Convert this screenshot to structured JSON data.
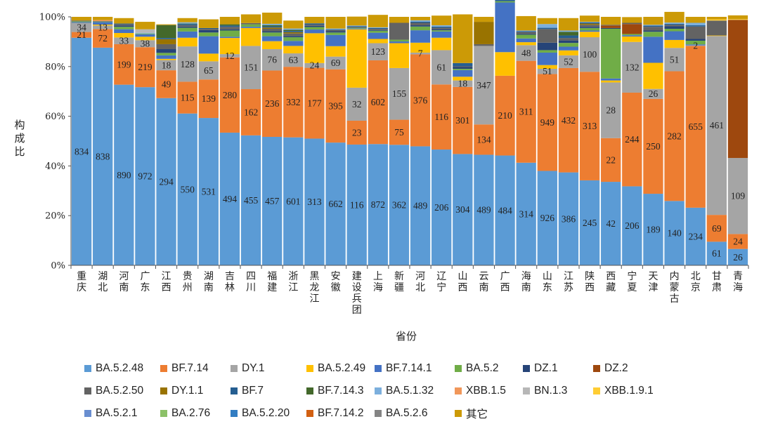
{
  "chart_data": {
    "type": "bar",
    "stacked": true,
    "percent": true,
    "xlabel": "省份",
    "ylabel": "构成比",
    "ylim": [
      0,
      100
    ],
    "yticks": [
      "0%",
      "20%",
      "40%",
      "60%",
      "80%",
      "100%"
    ],
    "grid": false,
    "legend_position": "bottom",
    "categories": [
      "重庆",
      "湖北",
      "河南",
      "广东",
      "江西",
      "贵州",
      "湖南",
      "吉林",
      "四川",
      "福建",
      "浙江",
      "黑龙江",
      "安徽",
      "建设兵团",
      "上海",
      "新疆",
      "河北",
      "辽宁",
      "山西",
      "云南",
      "广西",
      "海南",
      "山东",
      "江苏",
      "陕西",
      "西藏",
      "宁夏",
      "天津",
      "内蒙古",
      "北京",
      "甘肃",
      "青海"
    ],
    "series": [
      {
        "name": "BA.5.2.48",
        "color": "#5b9bd5",
        "values": [
          91.6,
          87.6,
          72.7,
          71.7,
          67.3,
          61.1,
          59.3,
          53.4,
          52.3,
          51.7,
          51.5,
          51.0,
          49.4,
          48.6,
          48.8,
          48.5,
          47.9,
          46.6,
          44.8,
          44.5,
          44.2,
          41.3,
          38.0,
          37.4,
          34.2,
          33.6,
          31.8,
          28.8,
          25.9,
          23.2,
          9.5,
          6.6
        ]
      },
      {
        "name": "BF.7.14",
        "color": "#ed7d31",
        "values": [
          2.3,
          7.5,
          16.3,
          16.1,
          11.2,
          12.8,
          15.5,
          30.3,
          18.6,
          26.7,
          28.4,
          28.5,
          29.5,
          9.6,
          33.7,
          10.1,
          37.0,
          26.2,
          27.0,
          12.2,
          32.1,
          41.0,
          39.0,
          42.0,
          43.7,
          17.6,
          37.7,
          38.2,
          52.2,
          65.1,
          10.8,
          6.0
        ]
      },
      {
        "name": "DY.1",
        "color": "#a5a5a5",
        "values": [
          3.7,
          1.4,
          2.7,
          2.8,
          4.1,
          14.2,
          7.3,
          1.3,
          17.4,
          8.6,
          5.4,
          1.9,
          5.1,
          13.3,
          6.9,
          20.8,
          0.7,
          13.8,
          2.6,
          31.6,
          0,
          6.3,
          2.1,
          5.1,
          13.9,
          22.4,
          20.4,
          4.0,
          9.4,
          0.2,
          72.0,
          30.6
        ]
      },
      {
        "name": "BA.5.2.49",
        "color": "#ffc000",
        "values": [
          0,
          0.4,
          1.8,
          1.4,
          0.5,
          3.5,
          3.1,
          6.5,
          7.2,
          3.2,
          3.0,
          12.0,
          4.2,
          23.5,
          1.7,
          10.0,
          4.0,
          5.0,
          1.5,
          0,
          9.5,
          1.2,
          1.5,
          2.0,
          2.2,
          0.8,
          2.2,
          10.5,
          3.2,
          0,
          0.2,
          0
        ]
      },
      {
        "name": "BF.7.14.1",
        "color": "#4472c4",
        "values": [
          0.3,
          1.0,
          1.5,
          1.0,
          1.4,
          2.5,
          7.0,
          0.5,
          0.5,
          2.0,
          2.0,
          1.5,
          4.5,
          0.3,
          2.5,
          0.7,
          5.0,
          2.5,
          2.7,
          0,
          20.0,
          1.5,
          5.0,
          1.5,
          0.5,
          0.8,
          0.5,
          10.5,
          3.5,
          0.4,
          0,
          0
        ]
      },
      {
        "name": "BA.5.2",
        "color": "#70ad47",
        "values": [
          0.3,
          0.2,
          1.0,
          0.3,
          1.0,
          1.5,
          1.5,
          2.5,
          1.0,
          1.5,
          1.5,
          1.0,
          1.0,
          0.3,
          0.8,
          0.7,
          1.5,
          0.5,
          0.5,
          0,
          0.5,
          1.5,
          1.0,
          1.5,
          1.0,
          20.0,
          0.5,
          2.0,
          1.0,
          1.5,
          0,
          0
        ]
      },
      {
        "name": "DZ.1",
        "color": "#264478",
        "values": [
          0,
          0,
          0.5,
          0,
          1.5,
          0.5,
          1.0,
          0.5,
          0,
          0.5,
          0.5,
          0.5,
          0.5,
          0,
          0.3,
          0,
          0.5,
          0.5,
          0.7,
          0,
          0,
          0.3,
          3.0,
          1.0,
          0.5,
          0.3,
          0,
          0.5,
          1.0,
          0.7,
          0,
          0
        ]
      },
      {
        "name": "DZ.2",
        "color": "#9e480e",
        "values": [
          0,
          0,
          0,
          0,
          0,
          0,
          0,
          0,
          0,
          0,
          0,
          0,
          0,
          0,
          0,
          0,
          0,
          0,
          0,
          0,
          0,
          0,
          0,
          0,
          0,
          1.0,
          4.0,
          0,
          0,
          0,
          0,
          55.6
        ]
      },
      {
        "name": "BA.5.2.50",
        "color": "#636363",
        "values": [
          0.3,
          0.2,
          0.5,
          0,
          2.0,
          0.5,
          0.5,
          1.0,
          0.5,
          1.0,
          1.0,
          0.5,
          0.5,
          0.3,
          0.5,
          6.8,
          1.0,
          0.5,
          0.3,
          0.7,
          0,
          0.8,
          5.5,
          1.0,
          0.8,
          0.3,
          0.5,
          1.5,
          0.6,
          5.0,
          6.0,
          0
        ]
      },
      {
        "name": "DY.1.1",
        "color": "#997300",
        "values": [
          0,
          0,
          0,
          0,
          2.0,
          0,
          0,
          0,
          0,
          0.5,
          0.5,
          0,
          0,
          0,
          0,
          0,
          0,
          0,
          0,
          9.0,
          0,
          0,
          0,
          0,
          0.5,
          0,
          0,
          0,
          0,
          0,
          0,
          0
        ]
      },
      {
        "name": "BF.7",
        "color": "#255e91",
        "values": [
          0,
          0,
          0.3,
          0,
          0.5,
          0.5,
          0.3,
          0.5,
          0,
          0.5,
          0.5,
          0.5,
          0.3,
          0.3,
          0.3,
          0,
          0.5,
          0.5,
          1.3,
          0,
          0.5,
          0.3,
          0.5,
          1.0,
          0.5,
          0,
          0,
          0.5,
          0.4,
          0.5,
          0,
          0
        ]
      },
      {
        "name": "BF.7.14.3",
        "color": "#43682b",
        "values": [
          0,
          0,
          0,
          0,
          5.2,
          0.2,
          0,
          0.5,
          0,
          0.5,
          0.5,
          0,
          0,
          0,
          0,
          0,
          0,
          0,
          0,
          0,
          0,
          0,
          0,
          1.5,
          0,
          0,
          0,
          0,
          0,
          0,
          0,
          0
        ]
      },
      {
        "name": "BA.5.1.32",
        "color": "#7cafdd",
        "values": [
          0,
          0,
          0,
          0.3,
          0,
          0.5,
          0,
          0,
          0,
          0.5,
          0.5,
          0,
          0.3,
          0.3,
          0.3,
          0,
          0.5,
          0.5,
          0,
          0,
          0,
          0.3,
          1.5,
          0.5,
          0.2,
          0,
          0,
          0.3,
          0.5,
          1.0,
          0,
          0
        ]
      },
      {
        "name": "XBB.1.5",
        "color": "#f1975a",
        "values": [
          0,
          0.4,
          0,
          0,
          0,
          0,
          0,
          0,
          0,
          0,
          0,
          0,
          0,
          0,
          0,
          0,
          0,
          0,
          0,
          0,
          0,
          0,
          0,
          0,
          0,
          0,
          0,
          0,
          0,
          0,
          0,
          0
        ]
      },
      {
        "name": "BN.1.3",
        "color": "#b7b7b7",
        "values": [
          0,
          0,
          0,
          1.4,
          0,
          0,
          0,
          0,
          0,
          0,
          0,
          0,
          0,
          0,
          0,
          0,
          0,
          0,
          0,
          0,
          0,
          0,
          0,
          0,
          0,
          0,
          0,
          0,
          0,
          0,
          0,
          0
        ]
      },
      {
        "name": "XBB.1.9.1",
        "color": "#ffcd33",
        "values": [
          0,
          0,
          0,
          0,
          0,
          0,
          0,
          0,
          0,
          0,
          0,
          0,
          0,
          0,
          0,
          0,
          0,
          0,
          0,
          0,
          0,
          0,
          0,
          0,
          0,
          0,
          0,
          0,
          0,
          0,
          0.5,
          0.3
        ]
      },
      {
        "name": "BA.5.2.1",
        "color": "#698ed0",
        "values": [
          0,
          0,
          0,
          0,
          0,
          0,
          0,
          0,
          0,
          0,
          0,
          0,
          0,
          0,
          0,
          0,
          0,
          0,
          0,
          0,
          0,
          0,
          0,
          0,
          0,
          0,
          0,
          0,
          0,
          0,
          0,
          0
        ]
      },
      {
        "name": "BA.2.76",
        "color": "#8cc168",
        "values": [
          0,
          0,
          0,
          0,
          0,
          0,
          0,
          0,
          0,
          0,
          0,
          0,
          0,
          0,
          0,
          0,
          0,
          0,
          0,
          0,
          0,
          0,
          0,
          0,
          0,
          0,
          0,
          0,
          0,
          0,
          0,
          0
        ]
      },
      {
        "name": "BA.5.2.20",
        "color": "#327dc2",
        "values": [
          0,
          0,
          0,
          0,
          0,
          0,
          0,
          0,
          0,
          0,
          0,
          0,
          0,
          0,
          0,
          0,
          0,
          0,
          0,
          0,
          0,
          0,
          0,
          0,
          0,
          0,
          0,
          0,
          0,
          0,
          0,
          0
        ]
      },
      {
        "name": "BF.7.14.2",
        "color": "#d26012",
        "values": [
          0,
          0,
          0,
          0,
          0,
          0,
          0,
          0,
          0,
          0,
          0,
          0,
          0,
          0,
          0,
          0,
          0,
          0,
          0,
          0,
          0,
          0,
          0,
          0,
          0,
          0,
          0,
          0,
          0,
          0,
          0,
          0
        ]
      },
      {
        "name": "BA.5.2.6",
        "color": "#848484",
        "values": [
          0,
          0,
          0,
          0,
          0,
          0,
          0,
          0,
          0,
          0,
          0,
          0,
          0,
          0,
          0,
          0,
          0,
          0,
          0,
          0,
          0,
          0,
          0,
          0,
          0,
          0,
          0,
          0,
          0,
          0,
          0,
          0
        ]
      },
      {
        "name": "其它",
        "color": "#cc9a06",
        "values": [
          1.5,
          1.3,
          2.2,
          3.0,
          0.3,
          1.7,
          3.5,
          3.0,
          3.5,
          4.5,
          3.2,
          2.6,
          4.7,
          3.6,
          5.0,
          2.4,
          1.4,
          3.9,
          19.6,
          2.0,
          1.2,
          5.8,
          2.4,
          5.0,
          2.5,
          3.2,
          2.3,
          3.2,
          4.3,
          2.4,
          1.0,
          1.5
        ]
      }
    ],
    "data_labels": {
      "BA.5.2.48": [
        834,
        838,
        890,
        972,
        294,
        550,
        531,
        494,
        455,
        457,
        601,
        313,
        662,
        116,
        872,
        362,
        489,
        206,
        304,
        489,
        484,
        314,
        926,
        386,
        245,
        42,
        206,
        189,
        140,
        234,
        61,
        26
      ],
      "BF.7.14": [
        21,
        72,
        199,
        219,
        49,
        115,
        139,
        280,
        162,
        236,
        332,
        177,
        395,
        23,
        602,
        75,
        376,
        116,
        301,
        134,
        210,
        311,
        949,
        432,
        313,
        22,
        244,
        250,
        282,
        655,
        69,
        24
      ],
      "DY.1": [
        34,
        13,
        33,
        38,
        18,
        128,
        65,
        12,
        151,
        76,
        63,
        24,
        69,
        32,
        123,
        155,
        7,
        61,
        18,
        347,
        null,
        48,
        51,
        52,
        100,
        28,
        132,
        26,
        51,
        2,
        461,
        109
      ]
    }
  }
}
